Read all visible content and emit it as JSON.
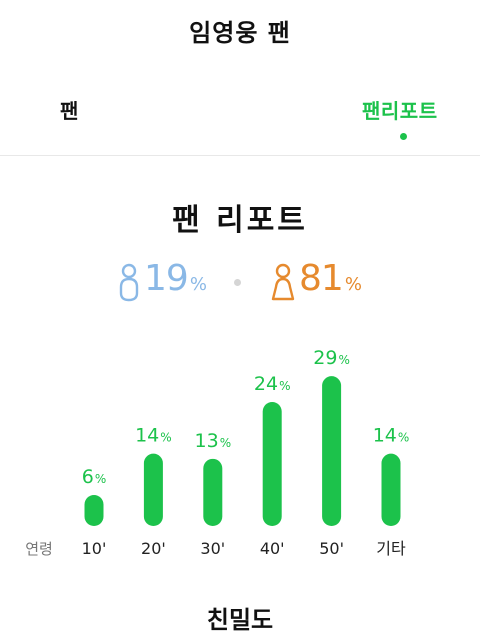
{
  "header": {
    "title": "임영웅 팬"
  },
  "tabs": [
    {
      "label": "팬",
      "active": false
    },
    {
      "label": "팬리포트",
      "active": true
    }
  ],
  "report": {
    "title": "팬 리포트",
    "gender": {
      "male": {
        "value": "19",
        "unit": "%",
        "icon": "male-person-icon",
        "color": "#8ab8e6"
      },
      "female": {
        "value": "81",
        "unit": "%",
        "icon": "female-person-icon",
        "color": "#e68a2e"
      }
    }
  },
  "chart_data": {
    "type": "bar",
    "axis_label": "연령",
    "categories": [
      "10'",
      "20'",
      "30'",
      "40'",
      "50'",
      "기타"
    ],
    "values": [
      6,
      14,
      13,
      24,
      29,
      14
    ],
    "unit": "%",
    "bar_color": "#1cc24b"
  },
  "section2": {
    "title": "친밀도"
  }
}
